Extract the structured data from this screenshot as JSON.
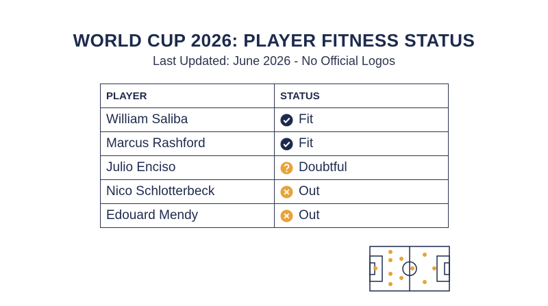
{
  "header": {
    "title": "WORLD CUP 2026: PLAYER FITNESS STATUS",
    "subtitle": "Last Updated: June 2026 - No Official Logos"
  },
  "table": {
    "columns": [
      "PLAYER",
      "STATUS"
    ],
    "rows": [
      [
        "William Saliba",
        "Fit"
      ],
      [
        "Marcus Rashford",
        "Fit"
      ],
      [
        "Julio Enciso",
        "Doubtful"
      ],
      [
        "Nico Schlotterbeck",
        "Out"
      ],
      [
        "Edouard Mendy",
        "Out"
      ]
    ]
  }
}
